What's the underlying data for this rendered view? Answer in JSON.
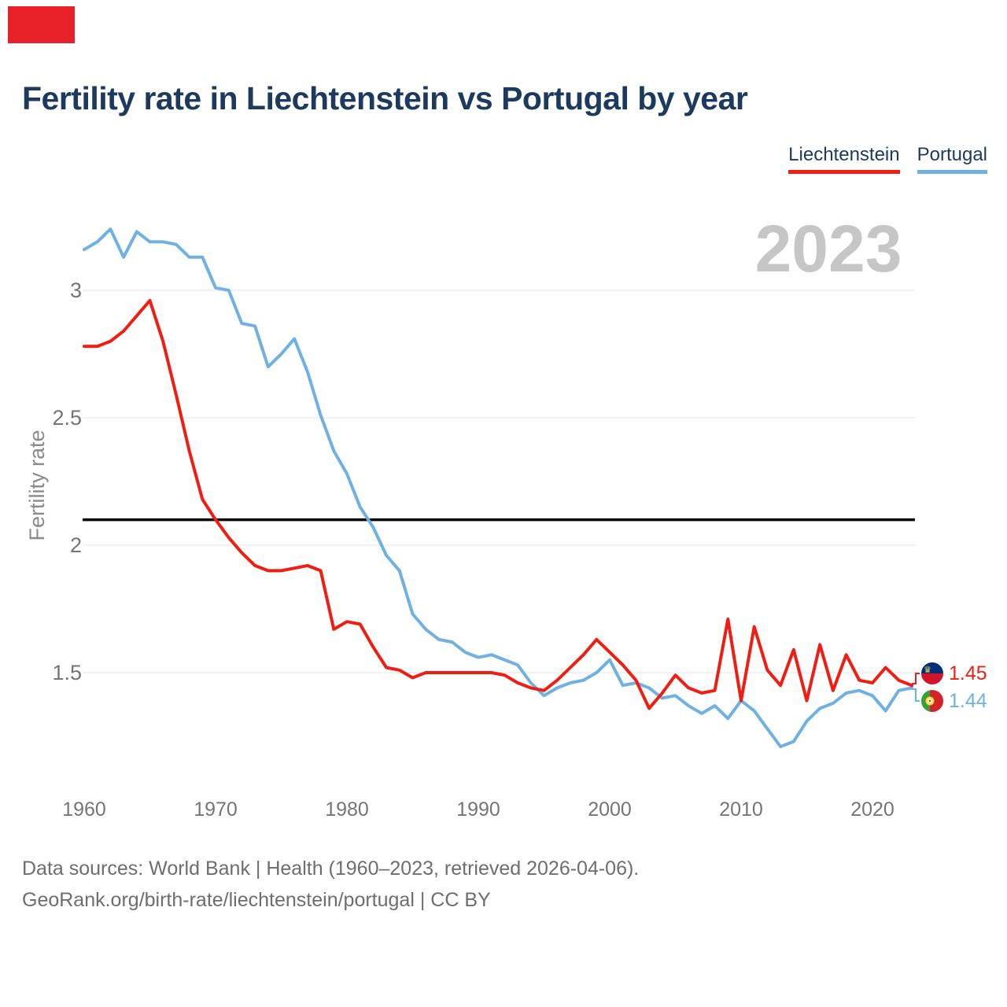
{
  "page": {
    "title": "Fertility rate in Liechtenstein vs Portugal by year",
    "watermark_year": "2023",
    "footer_line1": "Data sources: World Bank | Health (1960–2023, retrieved 2026-04-06).",
    "footer_line2": "GeoRank.org/birth-rate/liechtenstein/portugal | CC BY"
  },
  "legend": [
    {
      "label": "Liechtenstein",
      "color": "#f21d12"
    },
    {
      "label": "Portugal",
      "color": "#6fb1e3"
    }
  ],
  "end_labels": {
    "liechtenstein": {
      "value": "1.45",
      "flag": "liechtenstein-flag"
    },
    "portugal": {
      "value": "1.44",
      "flag": "portugal-flag"
    }
  },
  "colors": {
    "liechtenstein_line": "#f21d12",
    "portugal_line": "#6fb1e3",
    "title_text": "#1c3a5e",
    "axis_text": "#757575",
    "watermark": "#c6c6c6",
    "gridline": "#ededed",
    "reference_line": "#000000",
    "footer_text": "#6e6e6e",
    "brand_mark": "#e82128"
  },
  "chart_data": {
    "type": "line",
    "title": "Fertility rate in Liechtenstein vs Portugal by year",
    "xlabel": "",
    "ylabel": "Fertility rate",
    "xlim": [
      1960,
      2023
    ],
    "ylim": [
      1.1,
      3.4
    ],
    "grid": "horizontal",
    "legend_position": "top-right",
    "reference_line": 2.1,
    "x_tick_labels": [
      "1960",
      "1970",
      "1980",
      "1990",
      "2000",
      "2010",
      "2020"
    ],
    "x_tick_years": [
      1960,
      1970,
      1980,
      1990,
      2000,
      2010,
      2020
    ],
    "y_tick_labels": [
      "3",
      "2.5",
      "2",
      "1.5"
    ],
    "y_ticks": [
      3,
      2.5,
      2,
      1.5
    ],
    "x": [
      1960,
      1961,
      1962,
      1963,
      1964,
      1965,
      1966,
      1967,
      1968,
      1969,
      1970,
      1971,
      1972,
      1973,
      1974,
      1975,
      1976,
      1977,
      1978,
      1979,
      1980,
      1981,
      1982,
      1983,
      1984,
      1985,
      1986,
      1987,
      1988,
      1989,
      1990,
      1991,
      1992,
      1993,
      1994,
      1995,
      1996,
      1997,
      1998,
      1999,
      2000,
      2001,
      2002,
      2003,
      2004,
      2005,
      2006,
      2007,
      2008,
      2009,
      2010,
      2011,
      2012,
      2013,
      2014,
      2015,
      2016,
      2017,
      2018,
      2019,
      2020,
      2021,
      2022,
      2023
    ],
    "series": [
      {
        "name": "Liechtenstein",
        "color": "#f21d12",
        "final_value": 1.45,
        "values": [
          2.78,
          2.78,
          2.8,
          2.84,
          2.9,
          2.96,
          2.8,
          2.59,
          2.37,
          2.18,
          2.1,
          2.03,
          1.97,
          1.92,
          1.9,
          1.9,
          1.91,
          1.92,
          1.9,
          1.67,
          1.7,
          1.69,
          1.6,
          1.52,
          1.51,
          1.48,
          1.5,
          1.5,
          1.5,
          1.5,
          1.5,
          1.5,
          1.49,
          1.46,
          1.44,
          1.43,
          1.47,
          1.52,
          1.57,
          1.63,
          1.58,
          1.53,
          1.47,
          1.36,
          1.42,
          1.49,
          1.44,
          1.42,
          1.43,
          1.71,
          1.39,
          1.68,
          1.51,
          1.45,
          1.59,
          1.39,
          1.61,
          1.43,
          1.57,
          1.47,
          1.46,
          1.52,
          1.47,
          1.45
        ]
      },
      {
        "name": "Portugal",
        "color": "#6fb1e3",
        "final_value": 1.44,
        "values": [
          3.16,
          3.19,
          3.24,
          3.13,
          3.23,
          3.19,
          3.19,
          3.18,
          3.13,
          3.13,
          3.01,
          3.0,
          2.87,
          2.86,
          2.7,
          2.75,
          2.81,
          2.68,
          2.51,
          2.37,
          2.28,
          2.15,
          2.07,
          1.96,
          1.9,
          1.73,
          1.67,
          1.63,
          1.62,
          1.58,
          1.56,
          1.57,
          1.55,
          1.53,
          1.46,
          1.41,
          1.44,
          1.46,
          1.47,
          1.5,
          1.55,
          1.45,
          1.46,
          1.44,
          1.4,
          1.41,
          1.37,
          1.34,
          1.37,
          1.32,
          1.39,
          1.35,
          1.28,
          1.21,
          1.23,
          1.31,
          1.36,
          1.38,
          1.42,
          1.43,
          1.41,
          1.35,
          1.43,
          1.44
        ]
      }
    ]
  }
}
